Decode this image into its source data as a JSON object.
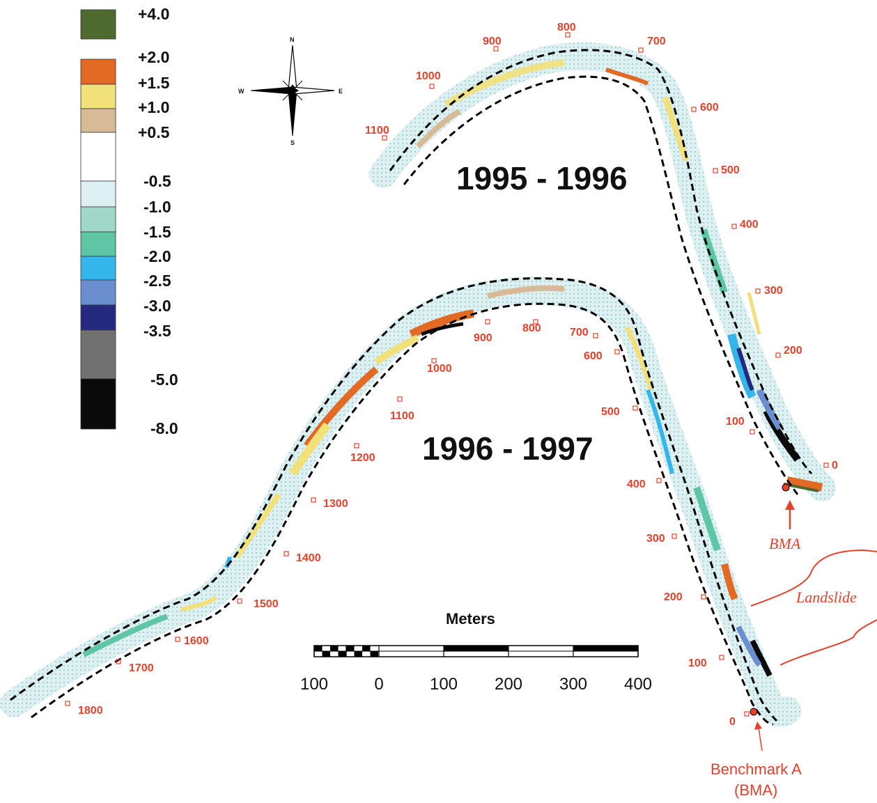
{
  "legend": {
    "classes": [
      {
        "label": "+4.0",
        "color": "#4e6a2e"
      },
      {
        "label": "+2.0",
        "color": "#e26a24"
      },
      {
        "label": "+1.5",
        "color": "#f2e07a"
      },
      {
        "label": "+1.0",
        "color": "#d8bb96"
      },
      {
        "label": "+0.5",
        "color": "#ffffff"
      },
      {
        "label": "-0.5",
        "color": "#dff0f4"
      },
      {
        "label": "-1.0",
        "color": "#9fd8c8"
      },
      {
        "label": "-1.5",
        "color": "#5ec6a4"
      },
      {
        "label": "-2.0",
        "color": "#34b6ea"
      },
      {
        "label": "-2.5",
        "color": "#6a8ed0"
      },
      {
        "label": "-3.0",
        "color": "#242a80"
      },
      {
        "label": "-3.5",
        "color": "#717171"
      },
      {
        "label": "-5.0",
        "color": "#0a0a0a"
      },
      {
        "label": "-8.0",
        "color": "#0a0a0a"
      }
    ]
  },
  "compass": {
    "n": "N",
    "s": "S",
    "e": "E",
    "w": "W"
  },
  "panels": {
    "upper_title": "1995 - 1996",
    "lower_title": "1996 - 1997"
  },
  "upper_stations": [
    "0",
    "100",
    "200",
    "300",
    "400",
    "500",
    "600",
    "700",
    "800",
    "900",
    "1000",
    "1100"
  ],
  "lower_stations": [
    "0",
    "100",
    "200",
    "300",
    "400",
    "500",
    "600",
    "700",
    "800",
    "900",
    "1000",
    "1100",
    "1200",
    "1300",
    "1400",
    "1500",
    "1600",
    "1700",
    "1800"
  ],
  "scale_bar": {
    "title": "Meters",
    "ticks": [
      "100",
      "0",
      "100",
      "200",
      "300",
      "400"
    ]
  },
  "annotations": {
    "bma": "BMA",
    "landslide": "Landslide",
    "benchmark_line1": "Benchmark A",
    "benchmark_line2": "(BMA)"
  },
  "colors": {
    "station": "#e8402a",
    "channel_outline": "#000000"
  }
}
